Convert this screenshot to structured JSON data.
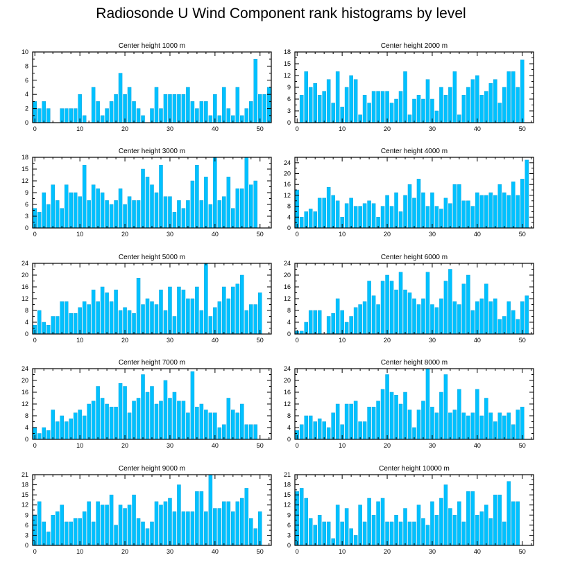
{
  "title": "Radiosonde U Wind Component rank histograms by level",
  "colors": {
    "bar": "#00c1ff",
    "bar_edge": "#16a6dd",
    "axis": "#000000"
  },
  "chart_data": [
    {
      "type": "bar",
      "title": "Center height 1000 m",
      "ylim": [
        0,
        10
      ],
      "yticks": [
        0,
        2,
        4,
        6,
        8,
        10
      ],
      "xticks": [
        0,
        10,
        20,
        30,
        40,
        50
      ],
      "values": [
        3,
        2,
        3,
        2,
        0,
        0,
        2,
        2,
        2,
        2,
        4,
        1,
        0,
        5,
        3,
        1,
        2,
        3,
        4,
        7,
        4,
        5,
        3,
        2,
        1,
        0,
        2,
        5,
        2,
        4,
        4,
        4,
        4,
        4,
        5,
        3,
        2,
        3,
        3,
        1,
        4,
        1,
        5,
        2,
        1,
        5,
        1,
        2,
        3,
        9,
        4,
        4,
        5
      ]
    },
    {
      "type": "bar",
      "title": "Center height 2000 m",
      "ylim": [
        0,
        18
      ],
      "yticks": [
        0,
        3,
        6,
        9,
        12,
        15,
        18
      ],
      "xticks": [
        0,
        10,
        20,
        30,
        40,
        50
      ],
      "values": [
        0,
        7,
        13,
        9,
        10,
        7,
        8,
        11,
        5,
        13,
        4,
        9,
        12,
        11,
        2,
        7,
        5,
        8,
        8,
        8,
        8,
        5,
        6,
        8,
        13,
        2,
        6,
        7,
        6,
        11,
        6,
        3,
        9,
        7,
        9,
        13,
        2,
        7,
        9,
        11,
        12,
        7,
        8,
        10,
        11,
        5,
        9,
        13,
        13,
        9,
        16
      ]
    },
    {
      "type": "bar",
      "title": "Center height 3000 m",
      "ylim": [
        0,
        18
      ],
      "yticks": [
        0,
        3,
        6,
        9,
        12,
        15,
        18
      ],
      "xticks": [
        0,
        10,
        20,
        30,
        40,
        50
      ],
      "values": [
        5,
        4,
        9,
        6,
        11,
        7,
        5,
        11,
        9,
        9,
        8,
        16,
        7,
        11,
        10,
        9,
        7,
        6,
        7,
        10,
        6,
        8,
        7,
        7,
        15,
        13,
        11,
        9,
        16,
        8,
        8,
        4,
        7,
        5,
        7,
        12,
        16,
        7,
        13,
        6,
        18,
        7,
        8,
        13,
        5,
        10,
        10,
        18,
        11,
        12
      ]
    },
    {
      "type": "bar",
      "title": "Center height 4000 m",
      "ylim": [
        0,
        26
      ],
      "yticks": [
        0,
        4,
        8,
        12,
        16,
        20,
        24
      ],
      "xticks": [
        0,
        10,
        20,
        30,
        40,
        50
      ],
      "values": [
        14,
        4,
        6,
        7,
        6,
        11,
        11,
        15,
        12,
        10,
        4,
        9,
        11,
        8,
        8,
        9,
        10,
        9,
        4,
        8,
        12,
        8,
        13,
        6,
        12,
        16,
        11,
        18,
        13,
        8,
        13,
        8,
        7,
        11,
        9,
        16,
        16,
        10,
        10,
        8,
        13,
        12,
        12,
        13,
        12,
        16,
        13,
        12,
        17,
        12,
        18,
        25
      ]
    },
    {
      "type": "bar",
      "title": "Center height 5000 m",
      "ylim": [
        0,
        24
      ],
      "yticks": [
        0,
        4,
        8,
        12,
        16,
        20,
        24
      ],
      "xticks": [
        0,
        10,
        20,
        30,
        40,
        50
      ],
      "values": [
        3,
        8,
        4,
        3,
        6,
        6,
        11,
        11,
        7,
        7,
        9,
        11,
        10,
        15,
        11,
        16,
        14,
        11,
        15,
        8,
        9,
        8,
        7,
        19,
        10,
        12,
        11,
        10,
        15,
        8,
        16,
        6,
        16,
        15,
        12,
        12,
        16,
        8,
        24,
        6,
        9,
        11,
        16,
        12,
        16,
        17,
        20,
        8,
        10,
        10,
        14
      ]
    },
    {
      "type": "bar",
      "title": "Center height 6000 m",
      "ylim": [
        0,
        24
      ],
      "yticks": [
        0,
        4,
        8,
        12,
        16,
        20,
        24
      ],
      "xticks": [
        0,
        10,
        20,
        30,
        40,
        50
      ],
      "values": [
        1,
        1,
        4,
        8,
        8,
        8,
        0,
        6,
        7,
        12,
        8,
        4,
        6,
        9,
        10,
        11,
        18,
        13,
        10,
        18,
        20,
        18,
        15,
        21,
        15,
        14,
        12,
        10,
        12,
        21,
        10,
        9,
        12,
        18,
        22,
        11,
        10,
        17,
        20,
        8,
        11,
        12,
        17,
        11,
        12,
        5,
        6,
        11,
        8,
        5,
        11,
        13
      ]
    },
    {
      "type": "bar",
      "title": "Center height 7000 m",
      "ylim": [
        0,
        24
      ],
      "yticks": [
        0,
        4,
        8,
        12,
        16,
        20,
        24
      ],
      "xticks": [
        0,
        10,
        20,
        30,
        40,
        50
      ],
      "values": [
        4,
        2,
        4,
        3,
        10,
        6,
        8,
        6,
        7,
        9,
        10,
        8,
        12,
        13,
        18,
        14,
        12,
        11,
        11,
        19,
        18,
        9,
        13,
        14,
        22,
        16,
        18,
        12,
        13,
        20,
        14,
        16,
        13,
        13,
        9,
        23,
        11,
        12,
        10,
        9,
        9,
        4,
        5,
        14,
        10,
        9,
        12,
        5,
        5,
        5
      ]
    },
    {
      "type": "bar",
      "title": "Center height 8000 m",
      "ylim": [
        0,
        24
      ],
      "yticks": [
        0,
        4,
        8,
        12,
        16,
        20,
        24
      ],
      "xticks": [
        0,
        10,
        20,
        30,
        40,
        50
      ],
      "values": [
        3,
        5,
        8,
        8,
        6,
        7,
        6,
        4,
        9,
        12,
        5,
        12,
        12,
        13,
        6,
        6,
        11,
        11,
        13,
        17,
        22,
        16,
        15,
        12,
        16,
        10,
        4,
        10,
        13,
        24,
        11,
        9,
        16,
        22,
        9,
        10,
        17,
        9,
        8,
        9,
        17,
        8,
        14,
        9,
        6,
        9,
        8,
        9,
        5,
        10,
        11
      ]
    },
    {
      "type": "bar",
      "title": "Center height 9000 m",
      "ylim": [
        0,
        21
      ],
      "yticks": [
        0,
        3,
        6,
        9,
        12,
        15,
        18,
        21
      ],
      "xticks": [
        0,
        10,
        20,
        30,
        40,
        50
      ],
      "values": [
        9,
        13,
        7,
        4,
        9,
        10,
        12,
        7,
        7,
        8,
        8,
        10,
        13,
        7,
        13,
        12,
        12,
        15,
        6,
        12,
        11,
        12,
        15,
        8,
        7,
        5,
        7,
        13,
        12,
        13,
        14,
        10,
        18,
        10,
        10,
        10,
        16,
        16,
        10,
        21,
        11,
        11,
        13,
        13,
        10,
        13,
        14,
        17,
        8,
        5,
        10
      ]
    },
    {
      "type": "bar",
      "title": "Center height 10000 m",
      "ylim": [
        0,
        21
      ],
      "yticks": [
        0,
        3,
        6,
        9,
        12,
        15,
        18,
        21
      ],
      "xticks": [
        0,
        10,
        20,
        30,
        40,
        50
      ],
      "values": [
        16,
        17,
        14,
        8,
        6,
        9,
        7,
        7,
        2,
        12,
        7,
        11,
        5,
        3,
        12,
        7,
        14,
        9,
        13,
        14,
        7,
        7,
        9,
        7,
        11,
        7,
        7,
        12,
        8,
        6,
        13,
        9,
        14,
        18,
        11,
        9,
        13,
        7,
        16,
        16,
        9,
        10,
        12,
        8,
        15,
        15,
        7,
        19,
        13,
        13
      ]
    }
  ]
}
